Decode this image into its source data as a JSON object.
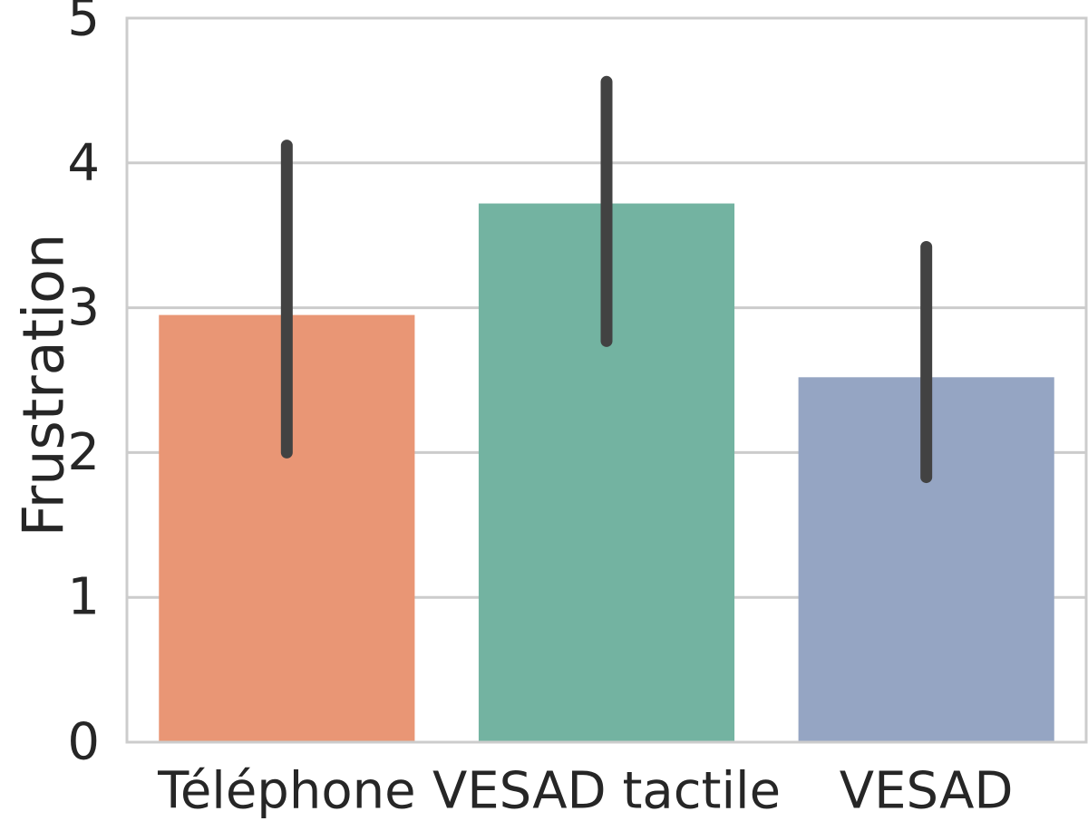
{
  "chart_data": {
    "type": "bar",
    "categories": [
      "Téléphone",
      "VESAD tactile",
      "VESAD"
    ],
    "values": [
      2.95,
      3.72,
      2.52
    ],
    "error_bars": [
      {
        "low": 2.0,
        "high": 4.12
      },
      {
        "low": 2.77,
        "high": 4.56
      },
      {
        "low": 1.83,
        "high": 3.42
      }
    ],
    "xlabel": "",
    "ylabel": "Frustration",
    "ylim": [
      0,
      5
    ],
    "yticks": [
      "0",
      "1",
      "2",
      "3",
      "4",
      "5"
    ],
    "grid": "horizontal",
    "colors": [
      "#e99675",
      "#73b3a1",
      "#95a5c3"
    ],
    "error_bar_color": "#424242",
    "grid_color": "#cccccc",
    "frame_color": "#cccccc"
  }
}
